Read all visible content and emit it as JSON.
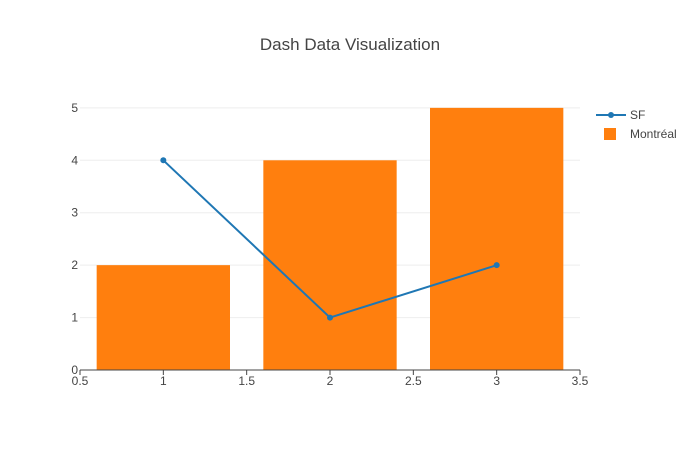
{
  "chart_data": {
    "type": "bar",
    "title": "Dash Data Visualization",
    "xlabel": "",
    "ylabel": "",
    "xlim": [
      0.5,
      3.5
    ],
    "ylim": [
      0,
      5.15
    ],
    "xticks": [
      "0.5",
      "1",
      "1.5",
      "2",
      "2.5",
      "3",
      "3.5"
    ],
    "xtick_values": [
      0.5,
      1,
      1.5,
      2,
      2.5,
      3,
      3.5
    ],
    "yticks": [
      "0",
      "1",
      "2",
      "3",
      "4",
      "5"
    ],
    "ytick_values": [
      0,
      1,
      2,
      3,
      4,
      5
    ],
    "grid": true,
    "legend_position": "top-right",
    "series": [
      {
        "name": "SF",
        "type": "line",
        "color": "#1f77b4",
        "x": [
          1,
          2,
          3
        ],
        "y": [
          4,
          1,
          2
        ]
      },
      {
        "name": "Montréal",
        "type": "bar",
        "color": "#ff7f0e",
        "x": [
          1,
          2,
          3
        ],
        "y": [
          2,
          4,
          5
        ]
      }
    ]
  }
}
